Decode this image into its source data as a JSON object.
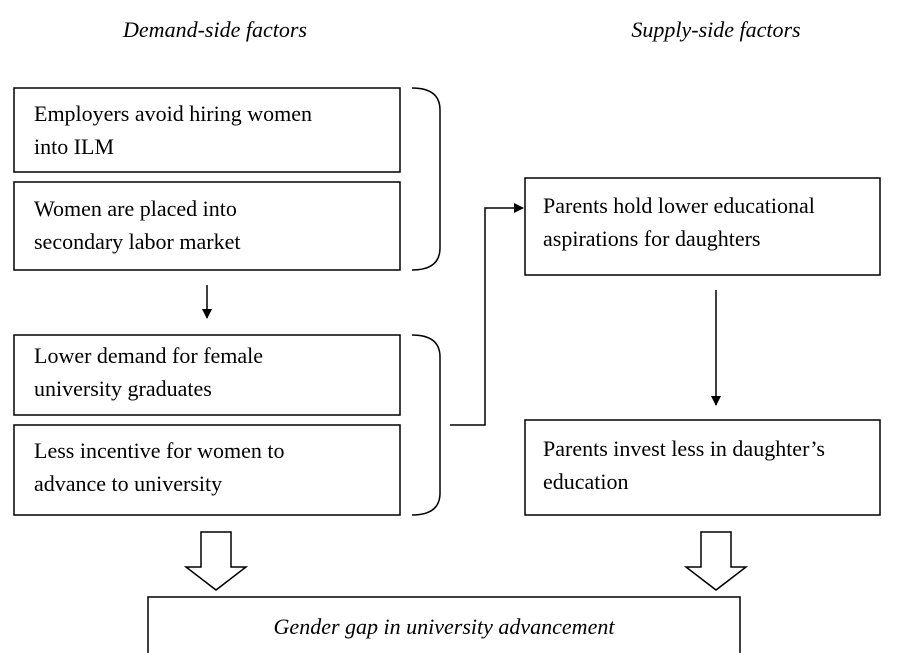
{
  "headings": {
    "demand": "Demand-side factors",
    "supply": "Supply-side factors"
  },
  "nodes": [
    {
      "lines": [
        "Employers avoid hiring women",
        "into ILM"
      ]
    },
    {
      "lines": [
        "Women are placed into",
        "secondary labor market"
      ]
    },
    {
      "lines": [
        "Lower demand for female",
        "university graduates"
      ]
    },
    {
      "lines": [
        "Less incentive for women to",
        "advance to university"
      ]
    },
    {
      "lines": [
        "Parents hold lower educational",
        "aspirations for daughters"
      ]
    },
    {
      "lines": [
        "Parents invest less in daughter’s",
        "education"
      ]
    },
    {
      "lines": [
        "Gender gap in university advancement"
      ]
    }
  ]
}
